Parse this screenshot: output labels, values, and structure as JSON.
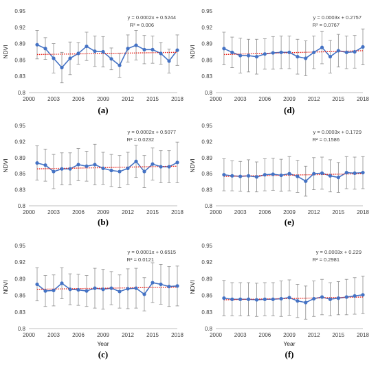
{
  "figure": {
    "background": "#ffffff"
  },
  "style": {
    "series_color": "#4472C4",
    "trend_color": "#E8241C",
    "errbar_color": "#8C8C8C",
    "axis_color": "#BFBFBF"
  },
  "chart_data": [
    {
      "type": "line",
      "panel": "(a)",
      "ylabel": "NDVI",
      "xlabel": "",
      "xlim": [
        2000,
        2018
      ],
      "ylim": [
        0.8,
        0.95
      ],
      "xticks": [
        "2000",
        "2003",
        "2006",
        "2009",
        "2012",
        "2015",
        "2018"
      ],
      "yticks": [
        "0.8",
        "0.83",
        "0.86",
        "0.89",
        "0.92",
        "0.95"
      ],
      "equation": "y = 0.0002x + 0.5244",
      "r2": "R² = 0.006",
      "series": [
        {
          "x": [
            2001,
            2002,
            2003,
            2004,
            2005,
            2006,
            2007,
            2008,
            2009,
            2010,
            2011,
            2012,
            2013,
            2014,
            2015,
            2016,
            2017,
            2018
          ],
          "y": [
            0.888,
            0.881,
            0.863,
            0.846,
            0.863,
            0.872,
            0.885,
            0.876,
            0.875,
            0.862,
            0.85,
            0.881,
            0.887,
            0.879,
            0.879,
            0.872,
            0.858,
            0.878
          ],
          "err": [
            0.026,
            0.02,
            0.027,
            0.028,
            0.03,
            0.02,
            0.026,
            0.028,
            0.028,
            0.02,
            0.022,
            0.025,
            0.027,
            0.026,
            0.025,
            0.02,
            0.022,
            0.028
          ]
        }
      ],
      "trend": {
        "x": [
          2001,
          2018
        ],
        "y": [
          0.87,
          0.874
        ]
      }
    },
    {
      "type": "line",
      "panel": "(d)",
      "ylabel": "NDVI",
      "xlabel": "",
      "xlim": [
        2000,
        2018
      ],
      "ylim": [
        0.8,
        0.95
      ],
      "xticks": [
        "2000",
        "2003",
        "2006",
        "2009",
        "2012",
        "2015",
        "2018"
      ],
      "yticks": [
        "0.8",
        "0.83",
        "0.86",
        "0.89",
        "0.92",
        "0.95"
      ],
      "equation": "y = 0.0003x + 0.2757",
      "r2": "R² = 0.0767",
      "series": [
        {
          "x": [
            2001,
            2002,
            2003,
            2004,
            2005,
            2006,
            2007,
            2008,
            2009,
            2010,
            2011,
            2012,
            2013,
            2014,
            2015,
            2016,
            2017,
            2018
          ],
          "y": [
            0.881,
            0.874,
            0.868,
            0.868,
            0.866,
            0.871,
            0.873,
            0.874,
            0.874,
            0.866,
            0.863,
            0.874,
            0.883,
            0.866,
            0.877,
            0.874,
            0.875,
            0.884
          ],
          "err": [
            0.03,
            0.028,
            0.032,
            0.03,
            0.032,
            0.028,
            0.03,
            0.03,
            0.03,
            0.032,
            0.032,
            0.03,
            0.03,
            0.03,
            0.03,
            0.03,
            0.03,
            0.033
          ]
        }
      ],
      "trend": {
        "x": [
          2001,
          2018
        ],
        "y": [
          0.87,
          0.877
        ]
      }
    },
    {
      "type": "line",
      "panel": "(b)",
      "ylabel": "NDVI",
      "xlabel": "",
      "xlim": [
        2000,
        2018
      ],
      "ylim": [
        0.8,
        0.95
      ],
      "xticks": [
        "2000",
        "2003",
        "2006",
        "2009",
        "2012",
        "2015",
        "2018"
      ],
      "yticks": [
        "0.8",
        "0.83",
        "0.86",
        "0.89",
        "0.92",
        "0.95"
      ],
      "equation": "y = 0.0002x + 0.5077",
      "r2": "R² = 0.0232",
      "series": [
        {
          "x": [
            2001,
            2002,
            2003,
            2004,
            2005,
            2006,
            2007,
            2008,
            2009,
            2010,
            2011,
            2012,
            2013,
            2014,
            2015,
            2016,
            2017,
            2018
          ],
          "y": [
            0.88,
            0.876,
            0.864,
            0.869,
            0.869,
            0.877,
            0.874,
            0.877,
            0.87,
            0.866,
            0.864,
            0.87,
            0.883,
            0.864,
            0.878,
            0.873,
            0.873,
            0.881
          ],
          "err": [
            0.032,
            0.03,
            0.032,
            0.03,
            0.03,
            0.03,
            0.028,
            0.038,
            0.03,
            0.03,
            0.03,
            0.03,
            0.03,
            0.03,
            0.03,
            0.03,
            0.03,
            0.038
          ]
        }
      ],
      "trend": {
        "x": [
          2001,
          2018
        ],
        "y": [
          0.869,
          0.874
        ]
      }
    },
    {
      "type": "line",
      "panel": "(e)",
      "ylabel": "NDVI",
      "xlabel": "",
      "xlim": [
        2000,
        2018
      ],
      "ylim": [
        0.8,
        0.95
      ],
      "xticks": [
        "2000",
        "2003",
        "2006",
        "2009",
        "2012",
        "2015",
        "2018"
      ],
      "yticks": [
        "0.8",
        "0.83",
        "0.86",
        "0.89",
        "0.92",
        "0.95"
      ],
      "equation": "y = 0.0003x + 0.1729",
      "r2": "R² = 0.1586",
      "series": [
        {
          "x": [
            2001,
            2002,
            2003,
            2004,
            2005,
            2006,
            2007,
            2008,
            2009,
            2010,
            2011,
            2012,
            2013,
            2014,
            2015,
            2016,
            2017,
            2018
          ],
          "y": [
            0.858,
            0.856,
            0.855,
            0.856,
            0.854,
            0.858,
            0.859,
            0.857,
            0.86,
            0.855,
            0.846,
            0.86,
            0.861,
            0.856,
            0.853,
            0.862,
            0.861,
            0.862
          ],
          "err": [
            0.03,
            0.028,
            0.028,
            0.03,
            0.028,
            0.03,
            0.03,
            0.03,
            0.032,
            0.03,
            0.028,
            0.03,
            0.03,
            0.03,
            0.028,
            0.03,
            0.03,
            0.03
          ]
        }
      ],
      "trend": {
        "x": [
          2001,
          2018
        ],
        "y": [
          0.855,
          0.86
        ]
      }
    },
    {
      "type": "line",
      "panel": "(c)",
      "ylabel": "NDVI",
      "xlabel": "Year",
      "xlim": [
        2000,
        2018
      ],
      "ylim": [
        0.8,
        0.95
      ],
      "xticks": [
        "2000",
        "2003",
        "2006",
        "2009",
        "2012",
        "2015",
        "2018"
      ],
      "yticks": [
        "0.8",
        "0.83",
        "0.86",
        "0.89",
        "0.92",
        "0.95"
      ],
      "equation": "y = 0.0001x + 0.6515",
      "r2": "R² = 0.0121",
      "series": [
        {
          "x": [
            2001,
            2002,
            2003,
            2004,
            2005,
            2006,
            2007,
            2008,
            2009,
            2010,
            2011,
            2012,
            2013,
            2014,
            2015,
            2016,
            2017,
            2018
          ],
          "y": [
            0.88,
            0.868,
            0.869,
            0.882,
            0.871,
            0.87,
            0.868,
            0.873,
            0.871,
            0.873,
            0.867,
            0.872,
            0.873,
            0.862,
            0.883,
            0.88,
            0.876,
            0.877
          ],
          "err": [
            0.03,
            0.028,
            0.028,
            0.028,
            0.028,
            0.028,
            0.028,
            0.036,
            0.036,
            0.03,
            0.03,
            0.036,
            0.036,
            0.03,
            0.036,
            0.036,
            0.036,
            0.036
          ]
        }
      ],
      "trend": {
        "x": [
          2001,
          2018
        ],
        "y": [
          0.871,
          0.875
        ]
      }
    },
    {
      "type": "line",
      "panel": "(f)",
      "ylabel": "NDVI",
      "xlabel": "Year",
      "xlim": [
        2000,
        2018
      ],
      "ylim": [
        0.8,
        0.95
      ],
      "xticks": [
        "2000",
        "2003",
        "2006",
        "2009",
        "2012",
        "2015",
        "2018"
      ],
      "yticks": [
        "0.8",
        "0.83",
        "0.86",
        "0.89",
        "0.92",
        "0.95"
      ],
      "equation": "y = 0.0003x + 0.229",
      "r2": "R² = 0.2981",
      "series": [
        {
          "x": [
            2001,
            2002,
            2003,
            2004,
            2005,
            2006,
            2007,
            2008,
            2009,
            2010,
            2011,
            2012,
            2013,
            2014,
            2015,
            2016,
            2017,
            2018
          ],
          "y": [
            0.855,
            0.853,
            0.853,
            0.853,
            0.852,
            0.853,
            0.853,
            0.854,
            0.856,
            0.85,
            0.847,
            0.854,
            0.857,
            0.853,
            0.855,
            0.857,
            0.859,
            0.861
          ],
          "err": [
            0.032,
            0.03,
            0.03,
            0.03,
            0.03,
            0.03,
            0.03,
            0.032,
            0.032,
            0.03,
            0.03,
            0.032,
            0.032,
            0.03,
            0.03,
            0.032,
            0.033,
            0.034
          ]
        }
      ],
      "trend": {
        "x": [
          2001,
          2018
        ],
        "y": [
          0.852,
          0.857
        ]
      }
    }
  ]
}
